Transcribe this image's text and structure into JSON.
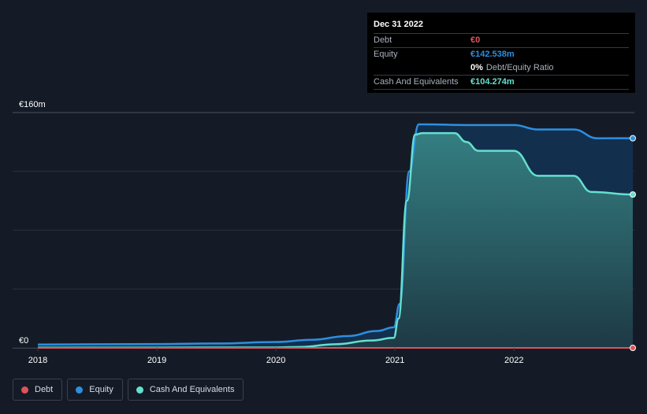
{
  "tooltip": {
    "date": "Dec 31 2022",
    "debt_label": "Debt",
    "debt_value": "€0",
    "equity_label": "Equity",
    "equity_value": "€142.538m",
    "ratio_value": "0%",
    "ratio_label": "Debt/Equity Ratio",
    "cash_label": "Cash And Equivalents",
    "cash_value": "€104.274m"
  },
  "colors": {
    "debt": "#e0525a",
    "equity": "#2d8fe0",
    "cash": "#64e0ce",
    "background": "#151b26"
  },
  "legend": [
    {
      "label": "Debt",
      "color": "#e0525a"
    },
    {
      "label": "Equity",
      "color": "#2d8fe0"
    },
    {
      "label": "Cash And Equivalents",
      "color": "#64e0ce"
    }
  ],
  "chart_data": {
    "type": "area",
    "title": "",
    "y_top_label": "€160m",
    "y_bottom_label": "€0",
    "ylim": [
      0,
      160
    ],
    "xlim": [
      2018.0,
      2022.998
    ],
    "x_ticks": [
      2018,
      2019,
      2020,
      2021,
      2022
    ],
    "x_tick_labels": [
      "2018",
      "2019",
      "2020",
      "2021",
      "2022"
    ],
    "series": [
      {
        "name": "Cash And Equivalents",
        "points": [
          [
            2018.0,
            0.2
          ],
          [
            2019.0,
            0.2
          ],
          [
            2020.0,
            0.3
          ],
          [
            2020.2,
            0.6
          ],
          [
            2020.5,
            2.5
          ],
          [
            2020.8,
            5.0
          ],
          [
            2020.99,
            6.8
          ],
          [
            2021.03,
            20
          ],
          [
            2021.1,
            100
          ],
          [
            2021.17,
            145
          ],
          [
            2021.23,
            146
          ],
          [
            2021.5,
            146
          ],
          [
            2021.6,
            140
          ],
          [
            2021.7,
            134
          ],
          [
            2022.0,
            134
          ],
          [
            2022.2,
            117
          ],
          [
            2022.5,
            117
          ],
          [
            2022.65,
            106
          ],
          [
            2022.998,
            104.274
          ]
        ]
      },
      {
        "name": "Equity",
        "points": [
          [
            2018.0,
            2.3
          ],
          [
            2019.0,
            2.6
          ],
          [
            2019.5,
            3.0
          ],
          [
            2020.0,
            4.0
          ],
          [
            2020.3,
            5.5
          ],
          [
            2020.6,
            8.0
          ],
          [
            2020.85,
            11.5
          ],
          [
            2020.99,
            14.0
          ],
          [
            2021.04,
            30
          ],
          [
            2021.12,
            120
          ],
          [
            2021.2,
            152
          ],
          [
            2021.25,
            152
          ],
          [
            2021.6,
            151.5
          ],
          [
            2022.0,
            151.5
          ],
          [
            2022.2,
            148.5
          ],
          [
            2022.5,
            148.5
          ],
          [
            2022.7,
            142.5
          ],
          [
            2022.998,
            142.538
          ]
        ]
      },
      {
        "name": "Debt",
        "points": [
          [
            2018.0,
            0
          ],
          [
            2022.998,
            0
          ]
        ]
      }
    ]
  }
}
